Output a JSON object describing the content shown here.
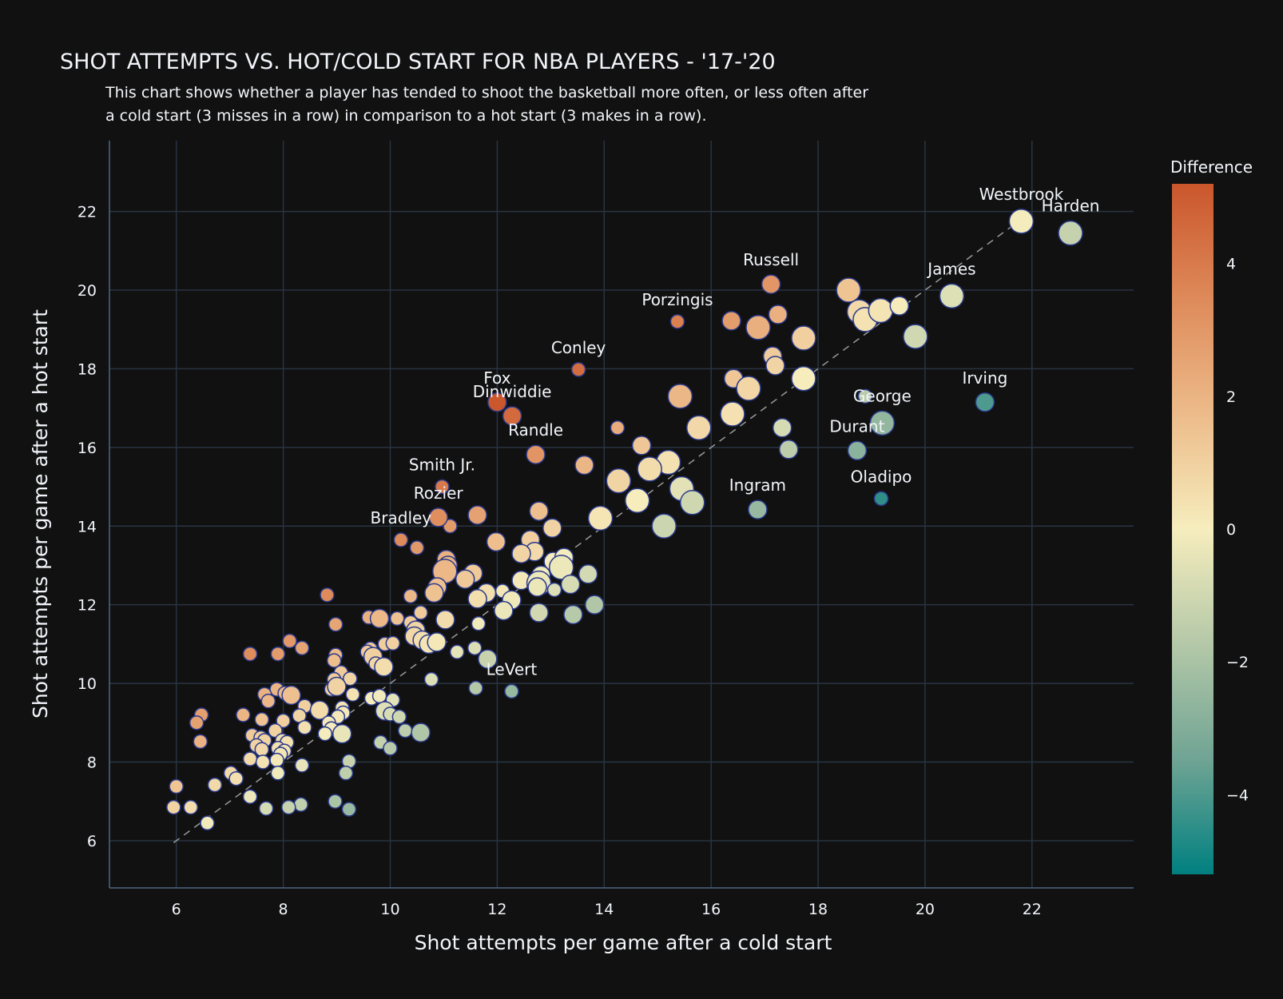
{
  "chart_data": {
    "type": "scatter",
    "title": "SHOT ATTEMPTS VS. HOT/COLD START FOR NBA PLAYERS - '17-'20",
    "subtitle_lines": [
      "This chart shows whether a player has tended to shoot the basketball more often, or less often after",
      "a cold start (3 misses in a row) in comparison to a hot start (3 makes in a row)."
    ],
    "xlabel": "Shot attempts per game after a cold start",
    "ylabel": "Shot attempts per game after a hot start",
    "xlim": [
      4.75,
      23.9
    ],
    "ylim": [
      4.8,
      23.8
    ],
    "x_ticks": [
      6,
      8,
      10,
      12,
      14,
      16,
      18,
      20,
      22
    ],
    "y_ticks": [
      6,
      8,
      10,
      12,
      14,
      16,
      18,
      20,
      22
    ],
    "grid": true,
    "reference_line": "y = x (dashed)",
    "colorbar": {
      "title": "Difference",
      "range": [
        -5.2,
        5.2
      ],
      "ticks": [
        4,
        2,
        0,
        -2,
        -4
      ],
      "tick_labels": [
        "4",
        "2",
        "0",
        "−2",
        "−4"
      ],
      "colorscale": [
        "#008080",
        "#70a494",
        "#b4c8a8",
        "#f6edbd",
        "#edbb8a",
        "#de8a5a",
        "#ca562c"
      ]
    },
    "points": [
      {
        "label": "Westbrook",
        "x": 21.8,
        "y": 21.75,
        "s": 3
      },
      {
        "label": "Harden",
        "x": 22.72,
        "y": 21.45,
        "s": 3
      },
      {
        "label": "Russell",
        "x": 17.12,
        "y": 20.15,
        "s": 2
      },
      {
        "label": "James",
        "x": 20.5,
        "y": 19.85,
        "s": 3
      },
      {
        "label": "Porzingis",
        "x": 15.37,
        "y": 19.2,
        "s": 1
      },
      {
        "label": "Conley",
        "x": 13.52,
        "y": 17.98,
        "s": 1
      },
      {
        "label": "Fox",
        "x": 12.0,
        "y": 17.15,
        "s": 2
      },
      {
        "label": "Dinwiddie",
        "x": 12.28,
        "y": 16.8,
        "s": 2
      },
      {
        "label": "Irving",
        "x": 21.12,
        "y": 17.15,
        "s": 2
      },
      {
        "label": "George",
        "x": 19.2,
        "y": 16.62,
        "s": 3
      },
      {
        "label": "Durant",
        "x": 18.73,
        "y": 15.92,
        "s": 2
      },
      {
        "label": "Randle",
        "x": 12.72,
        "y": 15.82,
        "s": 2
      },
      {
        "label": "Smith Jr.",
        "x": 10.97,
        "y": 15.0,
        "s": 1
      },
      {
        "label": "Oladipo",
        "x": 19.18,
        "y": 14.7,
        "s": 1
      },
      {
        "label": "Ingram",
        "x": 16.87,
        "y": 14.42,
        "s": 2
      },
      {
        "label": "Rozier",
        "x": 10.9,
        "y": 14.22,
        "s": 2
      },
      {
        "label": "Bradley",
        "x": 10.2,
        "y": 13.65,
        "s": 1
      },
      {
        "label": "LeVert",
        "x": 12.27,
        "y": 9.8,
        "s": 1
      },
      {
        "label": "",
        "x": 18.57,
        "y": 20.0,
        "s": 3
      },
      {
        "label": "",
        "x": 17.25,
        "y": 19.38,
        "s": 2
      },
      {
        "label": "",
        "x": 16.38,
        "y": 19.22,
        "s": 2
      },
      {
        "label": "",
        "x": 16.88,
        "y": 19.05,
        "s": 3
      },
      {
        "label": "",
        "x": 18.77,
        "y": 19.45,
        "s": 3
      },
      {
        "label": "",
        "x": 18.88,
        "y": 19.25,
        "s": 3
      },
      {
        "label": "",
        "x": 19.17,
        "y": 19.48,
        "s": 3
      },
      {
        "label": "",
        "x": 19.52,
        "y": 19.6,
        "s": 2
      },
      {
        "label": "",
        "x": 19.82,
        "y": 18.82,
        "s": 3
      },
      {
        "label": "",
        "x": 17.73,
        "y": 18.78,
        "s": 3
      },
      {
        "label": "",
        "x": 17.15,
        "y": 18.32,
        "s": 2
      },
      {
        "label": "",
        "x": 17.2,
        "y": 18.08,
        "s": 2
      },
      {
        "label": "",
        "x": 17.73,
        "y": 17.75,
        "s": 3
      },
      {
        "label": "",
        "x": 16.42,
        "y": 17.75,
        "s": 2
      },
      {
        "label": "",
        "x": 16.7,
        "y": 17.5,
        "s": 3
      },
      {
        "label": "",
        "x": 15.42,
        "y": 17.3,
        "s": 3
      },
      {
        "label": "",
        "x": 16.4,
        "y": 16.85,
        "s": 3
      },
      {
        "label": "",
        "x": 18.88,
        "y": 17.3,
        "s": 1
      },
      {
        "label": "",
        "x": 15.77,
        "y": 16.5,
        "s": 3
      },
      {
        "label": "",
        "x": 17.33,
        "y": 16.5,
        "s": 2
      },
      {
        "label": "",
        "x": 17.45,
        "y": 15.95,
        "s": 2
      },
      {
        "label": "",
        "x": 14.25,
        "y": 16.5,
        "s": 1
      },
      {
        "label": "",
        "x": 14.7,
        "y": 16.05,
        "s": 2
      },
      {
        "label": "",
        "x": 15.2,
        "y": 15.62,
        "s": 3
      },
      {
        "label": "",
        "x": 13.63,
        "y": 15.55,
        "s": 2
      },
      {
        "label": "",
        "x": 14.85,
        "y": 15.45,
        "s": 3
      },
      {
        "label": "",
        "x": 14.27,
        "y": 15.15,
        "s": 3
      },
      {
        "label": "",
        "x": 15.45,
        "y": 14.95,
        "s": 3
      },
      {
        "label": "",
        "x": 14.62,
        "y": 14.65,
        "s": 3
      },
      {
        "label": "",
        "x": 15.65,
        "y": 14.6,
        "s": 3
      },
      {
        "label": "",
        "x": 15.12,
        "y": 14.0,
        "s": 3
      },
      {
        "label": "",
        "x": 13.93,
        "y": 14.2,
        "s": 3
      },
      {
        "label": "",
        "x": 11.63,
        "y": 14.28,
        "s": 2
      },
      {
        "label": "",
        "x": 12.78,
        "y": 14.38,
        "s": 2
      },
      {
        "label": "",
        "x": 13.03,
        "y": 13.95,
        "s": 2
      },
      {
        "label": "",
        "x": 11.12,
        "y": 14.0,
        "s": 1
      },
      {
        "label": "",
        "x": 11.98,
        "y": 13.6,
        "s": 2
      },
      {
        "label": "",
        "x": 10.5,
        "y": 13.45,
        "s": 1
      },
      {
        "label": "",
        "x": 12.62,
        "y": 13.65,
        "s": 2
      },
      {
        "label": "",
        "x": 12.7,
        "y": 13.35,
        "s": 2
      },
      {
        "label": "",
        "x": 12.45,
        "y": 13.3,
        "s": 2
      },
      {
        "label": "",
        "x": 13.05,
        "y": 13.1,
        "s": 2
      },
      {
        "label": "",
        "x": 13.25,
        "y": 13.2,
        "s": 2
      },
      {
        "label": "",
        "x": 13.2,
        "y": 12.95,
        "s": 3
      },
      {
        "label": "",
        "x": 11.05,
        "y": 13.15,
        "s": 2
      },
      {
        "label": "",
        "x": 11.08,
        "y": 13.0,
        "s": 2
      },
      {
        "label": "",
        "x": 11.02,
        "y": 12.85,
        "s": 3
      },
      {
        "label": "",
        "x": 11.55,
        "y": 12.8,
        "s": 2
      },
      {
        "label": "",
        "x": 11.4,
        "y": 12.65,
        "s": 2
      },
      {
        "label": "",
        "x": 13.7,
        "y": 12.78,
        "s": 2
      },
      {
        "label": "",
        "x": 12.82,
        "y": 12.75,
        "s": 2
      },
      {
        "label": "",
        "x": 12.45,
        "y": 12.62,
        "s": 2
      },
      {
        "label": "",
        "x": 12.78,
        "y": 12.55,
        "s": 3
      },
      {
        "label": "",
        "x": 12.75,
        "y": 12.45,
        "s": 2
      },
      {
        "label": "",
        "x": 13.07,
        "y": 12.38,
        "s": 1
      },
      {
        "label": "",
        "x": 13.37,
        "y": 12.52,
        "s": 2
      },
      {
        "label": "",
        "x": 10.88,
        "y": 12.45,
        "s": 2
      },
      {
        "label": "",
        "x": 10.82,
        "y": 12.3,
        "s": 2
      },
      {
        "label": "",
        "x": 10.38,
        "y": 12.22,
        "s": 1
      },
      {
        "label": "",
        "x": 11.8,
        "y": 12.3,
        "s": 2
      },
      {
        "label": "",
        "x": 12.1,
        "y": 12.35,
        "s": 1
      },
      {
        "label": "",
        "x": 11.63,
        "y": 12.15,
        "s": 2
      },
      {
        "label": "",
        "x": 12.27,
        "y": 12.12,
        "s": 2
      },
      {
        "label": "",
        "x": 12.12,
        "y": 11.85,
        "s": 2
      },
      {
        "label": "",
        "x": 12.78,
        "y": 11.8,
        "s": 2
      },
      {
        "label": "",
        "x": 13.42,
        "y": 11.75,
        "s": 2
      },
      {
        "label": "",
        "x": 13.82,
        "y": 12.0,
        "s": 2
      },
      {
        "label": "",
        "x": 8.82,
        "y": 12.25,
        "s": 1
      },
      {
        "label": "",
        "x": 10.57,
        "y": 11.8,
        "s": 1
      },
      {
        "label": "",
        "x": 9.6,
        "y": 11.68,
        "s": 1
      },
      {
        "label": "",
        "x": 9.8,
        "y": 11.65,
        "s": 2
      },
      {
        "label": "",
        "x": 10.13,
        "y": 11.65,
        "s": 1
      },
      {
        "label": "",
        "x": 11.03,
        "y": 11.62,
        "s": 2
      },
      {
        "label": "",
        "x": 11.65,
        "y": 11.52,
        "s": 1
      },
      {
        "label": "",
        "x": 8.98,
        "y": 11.5,
        "s": 1
      },
      {
        "label": "",
        "x": 10.38,
        "y": 11.55,
        "s": 1
      },
      {
        "label": "",
        "x": 10.48,
        "y": 11.35,
        "s": 2
      },
      {
        "label": "",
        "x": 10.45,
        "y": 11.2,
        "s": 2
      },
      {
        "label": "",
        "x": 10.6,
        "y": 11.1,
        "s": 2
      },
      {
        "label": "",
        "x": 10.72,
        "y": 11.0,
        "s": 2
      },
      {
        "label": "",
        "x": 10.87,
        "y": 11.05,
        "s": 2
      },
      {
        "label": "",
        "x": 8.12,
        "y": 11.08,
        "s": 1
      },
      {
        "label": "",
        "x": 9.9,
        "y": 11.0,
        "s": 1
      },
      {
        "label": "",
        "x": 10.05,
        "y": 11.02,
        "s": 1
      },
      {
        "label": "",
        "x": 11.25,
        "y": 10.8,
        "s": 1
      },
      {
        "label": "",
        "x": 11.58,
        "y": 10.9,
        "s": 1
      },
      {
        "label": "",
        "x": 11.82,
        "y": 10.62,
        "s": 2
      },
      {
        "label": "",
        "x": 8.35,
        "y": 10.9,
        "s": 1
      },
      {
        "label": "",
        "x": 9.63,
        "y": 10.88,
        "s": 1
      },
      {
        "label": "",
        "x": 9.57,
        "y": 10.8,
        "s": 1
      },
      {
        "label": "",
        "x": 9.68,
        "y": 10.68,
        "s": 2
      },
      {
        "label": "",
        "x": 9.73,
        "y": 10.5,
        "s": 1
      },
      {
        "label": "",
        "x": 9.88,
        "y": 10.42,
        "s": 2
      },
      {
        "label": "",
        "x": 7.38,
        "y": 10.75,
        "s": 1
      },
      {
        "label": "",
        "x": 7.9,
        "y": 10.75,
        "s": 1
      },
      {
        "label": "",
        "x": 8.98,
        "y": 10.72,
        "s": 1
      },
      {
        "label": "",
        "x": 8.95,
        "y": 10.58,
        "s": 1
      },
      {
        "label": "",
        "x": 10.77,
        "y": 10.1,
        "s": 1
      },
      {
        "label": "",
        "x": 11.6,
        "y": 9.88,
        "s": 1
      },
      {
        "label": "",
        "x": 9.08,
        "y": 10.28,
        "s": 1
      },
      {
        "label": "",
        "x": 9.25,
        "y": 10.12,
        "s": 1
      },
      {
        "label": "",
        "x": 8.95,
        "y": 10.1,
        "s": 1
      },
      {
        "label": "",
        "x": 8.9,
        "y": 9.85,
        "s": 1
      },
      {
        "label": "",
        "x": 9.0,
        "y": 9.92,
        "s": 2
      },
      {
        "label": "",
        "x": 7.88,
        "y": 9.85,
        "s": 1
      },
      {
        "label": "",
        "x": 7.65,
        "y": 9.72,
        "s": 1
      },
      {
        "label": "",
        "x": 8.03,
        "y": 9.75,
        "s": 1
      },
      {
        "label": "",
        "x": 8.15,
        "y": 9.7,
        "s": 2
      },
      {
        "label": "",
        "x": 7.72,
        "y": 9.55,
        "s": 1
      },
      {
        "label": "",
        "x": 9.3,
        "y": 9.72,
        "s": 1
      },
      {
        "label": "",
        "x": 9.65,
        "y": 9.62,
        "s": 1
      },
      {
        "label": "",
        "x": 9.8,
        "y": 9.68,
        "s": 1
      },
      {
        "label": "",
        "x": 10.05,
        "y": 9.58,
        "s": 1
      },
      {
        "label": "",
        "x": 9.9,
        "y": 9.3,
        "s": 2
      },
      {
        "label": "",
        "x": 10.0,
        "y": 9.22,
        "s": 1
      },
      {
        "label": "",
        "x": 10.17,
        "y": 9.15,
        "s": 1
      },
      {
        "label": "",
        "x": 6.47,
        "y": 9.2,
        "s": 1
      },
      {
        "label": "",
        "x": 6.38,
        "y": 9.0,
        "s": 1
      },
      {
        "label": "",
        "x": 7.25,
        "y": 9.2,
        "s": 1
      },
      {
        "label": "",
        "x": 8.4,
        "y": 9.42,
        "s": 1
      },
      {
        "label": "",
        "x": 8.68,
        "y": 9.32,
        "s": 2
      },
      {
        "label": "",
        "x": 9.1,
        "y": 9.38,
        "s": 1
      },
      {
        "label": "",
        "x": 9.12,
        "y": 9.25,
        "s": 1
      },
      {
        "label": "",
        "x": 9.02,
        "y": 9.15,
        "s": 1
      },
      {
        "label": "",
        "x": 8.3,
        "y": 9.18,
        "s": 1
      },
      {
        "label": "",
        "x": 8.0,
        "y": 9.05,
        "s": 1
      },
      {
        "label": "",
        "x": 7.6,
        "y": 9.08,
        "s": 1
      },
      {
        "label": "",
        "x": 8.85,
        "y": 9.0,
        "s": 1
      },
      {
        "label": "",
        "x": 8.9,
        "y": 8.85,
        "s": 1
      },
      {
        "label": "",
        "x": 8.4,
        "y": 8.88,
        "s": 1
      },
      {
        "label": "",
        "x": 7.85,
        "y": 8.8,
        "s": 1
      },
      {
        "label": "",
        "x": 8.78,
        "y": 8.72,
        "s": 1
      },
      {
        "label": "",
        "x": 9.1,
        "y": 8.72,
        "s": 2
      },
      {
        "label": "",
        "x": 7.42,
        "y": 8.68,
        "s": 1
      },
      {
        "label": "",
        "x": 7.58,
        "y": 8.62,
        "s": 1
      },
      {
        "label": "",
        "x": 7.65,
        "y": 8.55,
        "s": 1
      },
      {
        "label": "",
        "x": 7.98,
        "y": 8.55,
        "s": 1
      },
      {
        "label": "",
        "x": 8.07,
        "y": 8.5,
        "s": 1
      },
      {
        "label": "",
        "x": 6.45,
        "y": 8.52,
        "s": 1
      },
      {
        "label": "",
        "x": 7.5,
        "y": 8.42,
        "s": 1
      },
      {
        "label": "",
        "x": 7.6,
        "y": 8.32,
        "s": 1
      },
      {
        "label": "",
        "x": 7.9,
        "y": 8.35,
        "s": 1
      },
      {
        "label": "",
        "x": 8.02,
        "y": 8.28,
        "s": 1
      },
      {
        "label": "",
        "x": 7.95,
        "y": 8.2,
        "s": 1
      },
      {
        "label": "",
        "x": 7.38,
        "y": 8.08,
        "s": 1
      },
      {
        "label": "",
        "x": 7.62,
        "y": 8.0,
        "s": 1
      },
      {
        "label": "",
        "x": 7.88,
        "y": 8.05,
        "s": 1
      },
      {
        "label": "",
        "x": 8.35,
        "y": 7.92,
        "s": 1
      },
      {
        "label": "",
        "x": 9.82,
        "y": 8.5,
        "s": 1
      },
      {
        "label": "",
        "x": 10.0,
        "y": 8.35,
        "s": 1
      },
      {
        "label": "",
        "x": 10.28,
        "y": 8.8,
        "s": 1
      },
      {
        "label": "",
        "x": 10.57,
        "y": 8.75,
        "s": 2
      },
      {
        "label": "",
        "x": 9.23,
        "y": 8.02,
        "s": 1
      },
      {
        "label": "",
        "x": 9.17,
        "y": 7.72,
        "s": 1
      },
      {
        "label": "",
        "x": 7.02,
        "y": 7.72,
        "s": 1
      },
      {
        "label": "",
        "x": 7.12,
        "y": 7.58,
        "s": 1
      },
      {
        "label": "",
        "x": 7.9,
        "y": 7.72,
        "s": 1
      },
      {
        "label": "",
        "x": 6.72,
        "y": 7.42,
        "s": 1
      },
      {
        "label": "",
        "x": 6.0,
        "y": 7.38,
        "s": 1
      },
      {
        "label": "",
        "x": 7.38,
        "y": 7.12,
        "s": 1
      },
      {
        "label": "",
        "x": 8.97,
        "y": 7.0,
        "s": 1
      },
      {
        "label": "",
        "x": 8.33,
        "y": 6.92,
        "s": 1
      },
      {
        "label": "",
        "x": 8.1,
        "y": 6.85,
        "s": 1
      },
      {
        "label": "",
        "x": 9.23,
        "y": 6.8,
        "s": 1
      },
      {
        "label": "",
        "x": 7.68,
        "y": 6.82,
        "s": 1
      },
      {
        "label": "",
        "x": 5.95,
        "y": 6.85,
        "s": 1
      },
      {
        "label": "",
        "x": 6.27,
        "y": 6.85,
        "s": 1
      },
      {
        "label": "",
        "x": 6.58,
        "y": 6.45,
        "s": 1
      }
    ]
  }
}
